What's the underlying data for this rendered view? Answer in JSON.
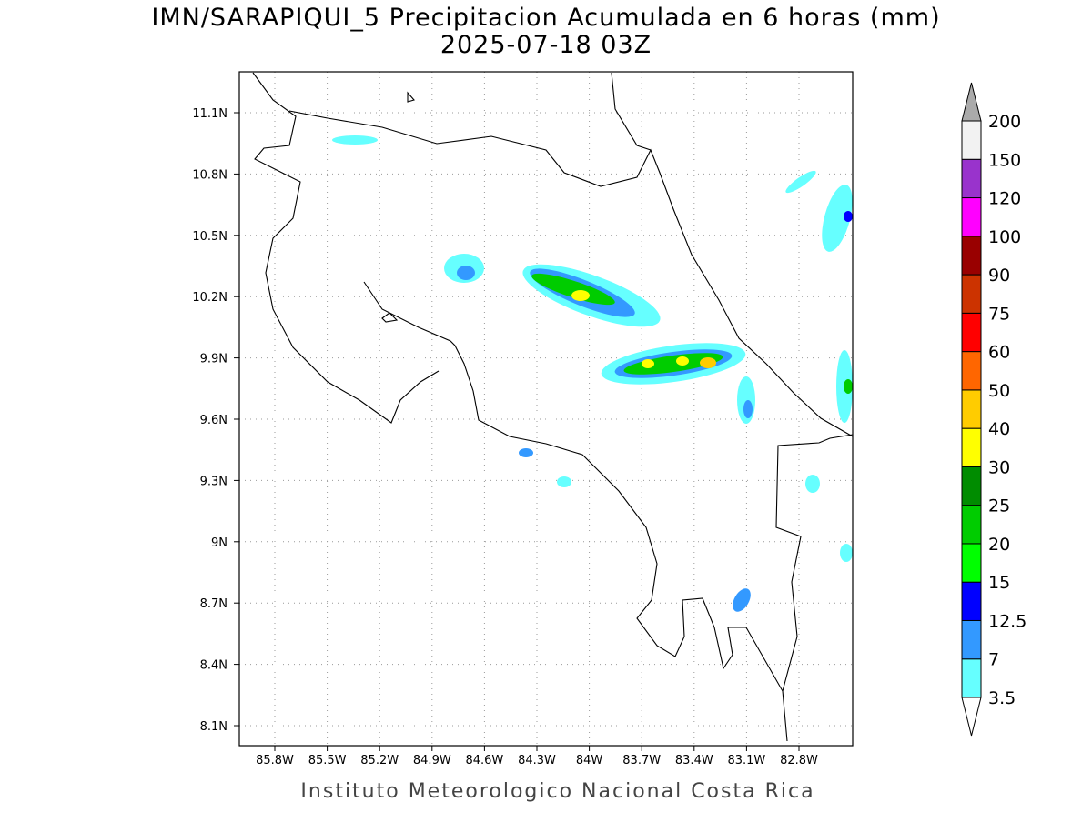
{
  "title": "IMN/SARAPIQUI_5 Precipitacion Acumulada en 6 horas (mm)",
  "subtitle": "2025-07-18 03Z",
  "lat_labels": [
    "11.1N",
    "10.8N",
    "10.5N",
    "10.2N",
    "9.9N",
    "9.6N",
    "9.3N",
    "9N",
    "8.7N",
    "8.4N",
    "8.1N"
  ],
  "lon_labels": [
    "85.8W",
    "85.5W",
    "85.2W",
    "84.9W",
    "84.6W",
    "84.3W",
    "84W",
    "83.7W",
    "83.4W",
    "83.1W",
    "82.8W"
  ],
  "colorbar": {
    "levels": [
      3.5,
      7,
      12.5,
      15,
      20,
      25,
      30,
      40,
      50,
      60,
      75,
      90,
      100,
      120,
      150,
      200
    ],
    "colors": [
      "#66ffff",
      "#3399ff",
      "#0000ff",
      "#00ff00",
      "#00cc00",
      "#008c00",
      "#ffff00",
      "#ffcc00",
      "#ff6600",
      "#ff0000",
      "#cc3300",
      "#990000",
      "#ff00ff",
      "#9933cc",
      "#f2f2f2"
    ]
  },
  "footer": "Instituto Meteorologico Nacional Costa Rica"
}
